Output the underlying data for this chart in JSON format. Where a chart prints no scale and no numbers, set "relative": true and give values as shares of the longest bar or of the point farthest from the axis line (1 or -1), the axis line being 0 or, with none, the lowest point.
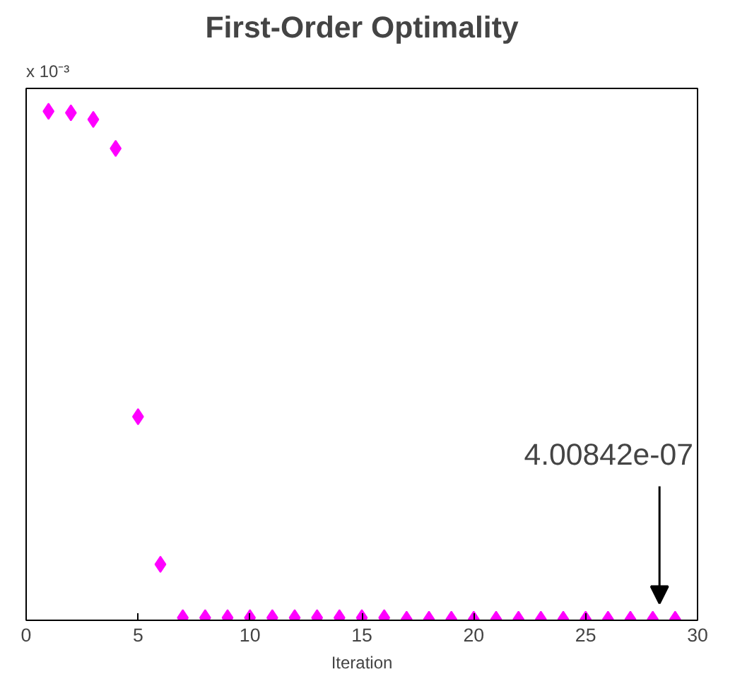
{
  "chart_data": {
    "type": "scatter",
    "title": "First-Order Optimality",
    "xlabel": "Iteration",
    "relative": true,
    "tick_labels": "x",
    "marker": "diamond",
    "grid": false,
    "x": [
      1,
      2,
      3,
      4,
      5,
      6,
      7,
      8,
      9,
      10,
      11,
      12,
      13,
      14,
      15,
      16,
      17,
      18,
      19,
      20,
      21,
      22,
      23,
      24,
      25,
      26,
      27,
      28,
      29
    ],
    "series": [
      {
        "color": "#ff00ff",
        "values": [
          1,
          0.997,
          0.984,
          0.927,
          0.4,
          0.11,
          0.005,
          0.005,
          0.005,
          0.005,
          0.005,
          0.005,
          0.005,
          0.005,
          0.005,
          0.005,
          0.002,
          0.002,
          0.002,
          0.002,
          0.002,
          0.002,
          0.002,
          0.002,
          0.002,
          0.002,
          0.002,
          0.002,
          0.002
        ]
      }
    ],
    "xlim": [
      0,
      30
    ],
    "xticks": [
      0,
      5,
      10,
      15,
      20,
      25,
      30
    ],
    "annotations": [
      "x 10⁻³",
      "4.00842e-07"
    ]
  }
}
